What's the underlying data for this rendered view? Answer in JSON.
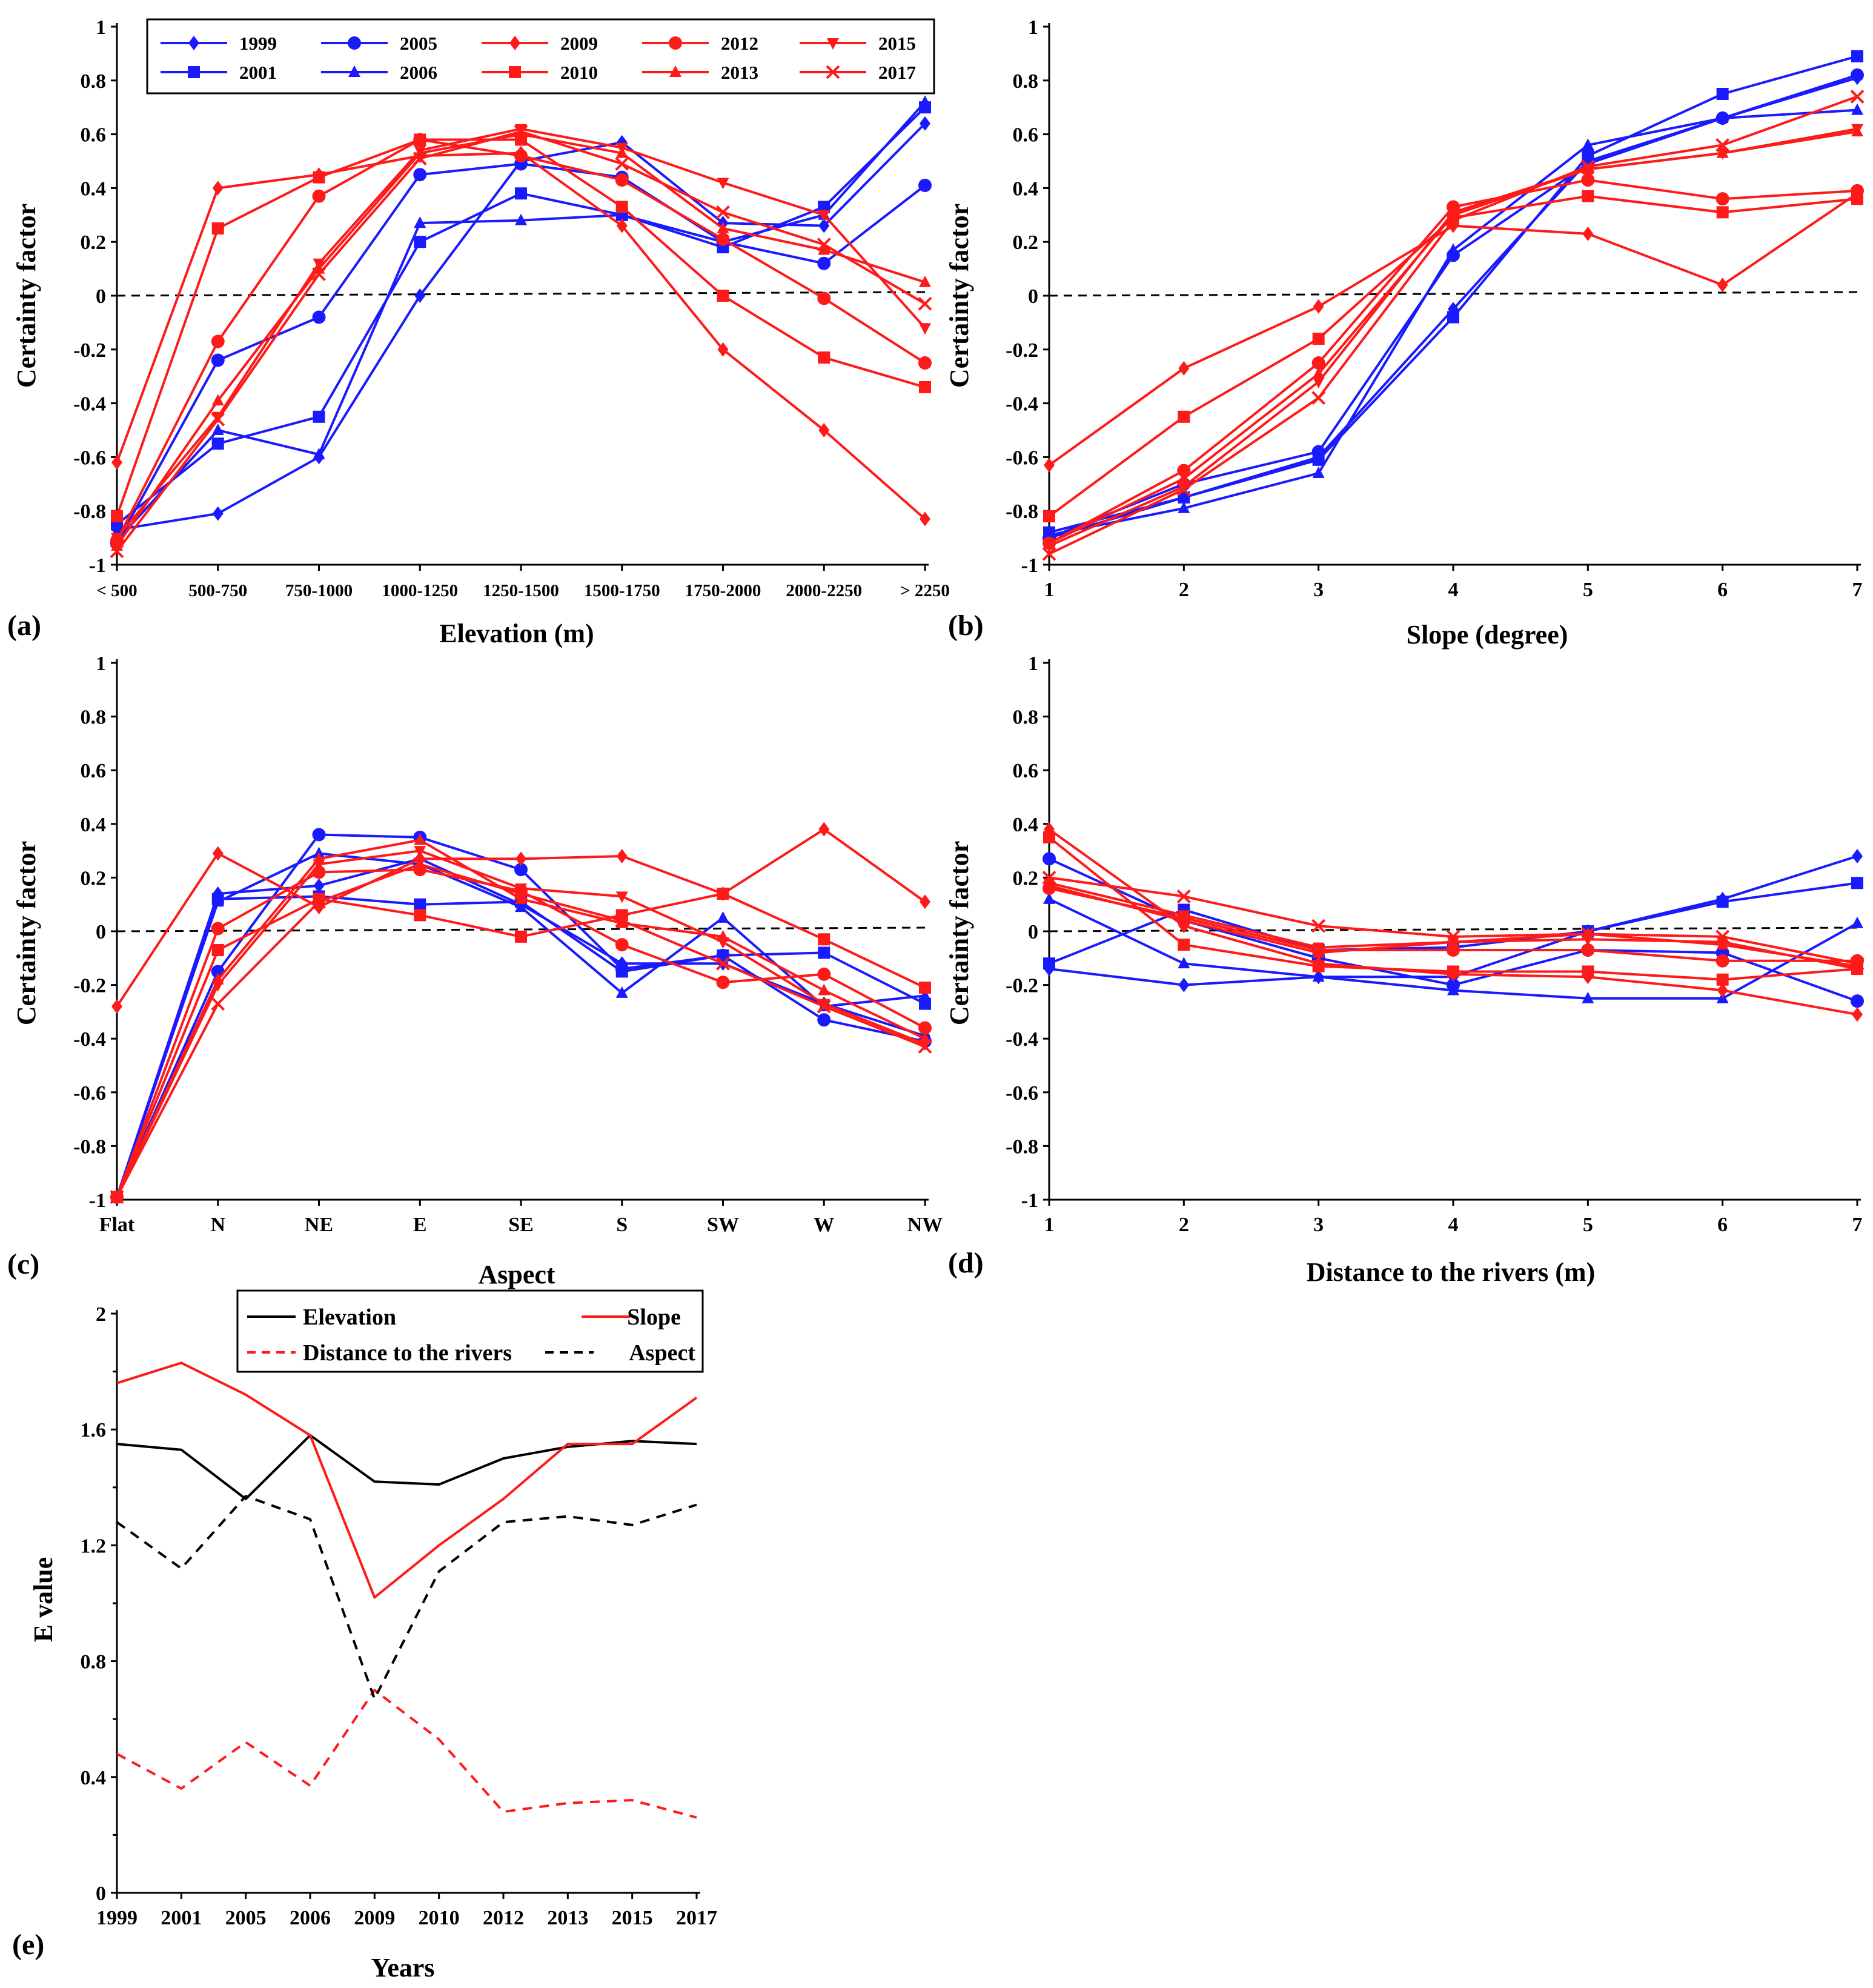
{
  "figure": {
    "panel_labels": [
      "(a)",
      "(b)",
      "(c)",
      "(d)",
      "(e)"
    ]
  },
  "legend_ab": [
    {
      "name": "1999",
      "color": "#1a1aff",
      "marker": "diamond"
    },
    {
      "name": "2005",
      "color": "#1a1aff",
      "marker": "circle"
    },
    {
      "name": "2009",
      "color": "#ff1a1a",
      "marker": "diamond"
    },
    {
      "name": "2012",
      "color": "#ff1a1a",
      "marker": "circle"
    },
    {
      "name": "2015",
      "color": "#ff1a1a",
      "marker": "triangle-down"
    },
    {
      "name": "2001",
      "color": "#1a1aff",
      "marker": "square"
    },
    {
      "name": "2006",
      "color": "#1a1aff",
      "marker": "triangle-up"
    },
    {
      "name": "2010",
      "color": "#ff1a1a",
      "marker": "square"
    },
    {
      "name": "2013",
      "color": "#ff1a1a",
      "marker": "triangle-up"
    },
    {
      "name": "2017",
      "color": "#ff1a1a",
      "marker": "x"
    }
  ],
  "chart_data": [
    {
      "id": "a",
      "type": "line",
      "label": "(a)",
      "xlabel": "Elevation (m)",
      "ylabel": "Certainty factor",
      "ylim": [
        -1,
        1
      ],
      "yticks": [
        "1",
        "0.8",
        "0.6",
        "0.4",
        "0.2",
        "0",
        "-0.2",
        "-0.4",
        "-0.6",
        "-0.8",
        "-1"
      ],
      "categories": [
        "< 500",
        "500-750",
        "750-1000",
        "1000-1250",
        "1250-1500",
        "1500-1750",
        "1750-2000",
        "2000-2250",
        "> 2250"
      ],
      "series": [
        {
          "name": "1999",
          "values": [
            -0.87,
            -0.81,
            -0.6,
            0.0,
            0.5,
            0.57,
            0.27,
            0.26,
            0.64
          ]
        },
        {
          "name": "2001",
          "values": [
            -0.85,
            -0.55,
            -0.45,
            0.2,
            0.38,
            0.3,
            0.18,
            0.33,
            0.7
          ]
        },
        {
          "name": "2005",
          "values": [
            -0.92,
            -0.24,
            -0.08,
            0.45,
            0.49,
            0.44,
            0.2,
            0.12,
            0.41
          ]
        },
        {
          "name": "2006",
          "values": [
            -0.91,
            -0.5,
            -0.59,
            0.27,
            0.28,
            0.3,
            0.2,
            0.3,
            0.72
          ]
        },
        {
          "name": "2009",
          "values": [
            -0.62,
            0.4,
            0.45,
            0.52,
            0.53,
            0.26,
            -0.2,
            -0.5,
            -0.83
          ]
        },
        {
          "name": "2010",
          "values": [
            -0.82,
            0.25,
            0.44,
            0.58,
            0.58,
            0.33,
            0.0,
            -0.23,
            -0.34
          ]
        },
        {
          "name": "2012",
          "values": [
            -0.91,
            -0.17,
            0.37,
            0.58,
            0.52,
            0.43,
            0.21,
            -0.01,
            -0.25
          ]
        },
        {
          "name": "2013",
          "values": [
            -0.93,
            -0.39,
            0.1,
            0.53,
            0.6,
            0.53,
            0.25,
            0.17,
            0.05
          ]
        },
        {
          "name": "2015",
          "values": [
            -0.9,
            -0.45,
            0.12,
            0.54,
            0.62,
            0.55,
            0.42,
            0.3,
            -0.12
          ]
        },
        {
          "name": "2017",
          "values": [
            -0.95,
            -0.46,
            0.08,
            0.51,
            0.61,
            0.49,
            0.31,
            0.19,
            -0.03
          ]
        }
      ]
    },
    {
      "id": "b",
      "type": "line",
      "label": "(b)",
      "xlabel": "Slope (degree)",
      "ylabel": "Certainty factor",
      "ylim": [
        -1,
        1
      ],
      "yticks": [
        "1",
        "0.8",
        "0.6",
        "0.4",
        "0.2",
        "0",
        "-0.2",
        "-0.4",
        "-0.6",
        "-0.8",
        "-1"
      ],
      "categories": [
        "1",
        "2",
        "3",
        "4",
        "5",
        "6",
        "7"
      ],
      "series": [
        {
          "name": "1999",
          "values": [
            -0.9,
            -0.75,
            -0.6,
            -0.05,
            0.5,
            0.66,
            0.81
          ]
        },
        {
          "name": "2001",
          "values": [
            -0.88,
            -0.75,
            -0.61,
            -0.08,
            0.52,
            0.75,
            0.89
          ]
        },
        {
          "name": "2005",
          "values": [
            -0.9,
            -0.7,
            -0.58,
            0.15,
            0.49,
            0.66,
            0.82
          ]
        },
        {
          "name": "2006",
          "values": [
            -0.89,
            -0.79,
            -0.66,
            0.17,
            0.56,
            0.66,
            0.69
          ]
        },
        {
          "name": "2009",
          "values": [
            -0.63,
            -0.27,
            -0.04,
            0.26,
            0.23,
            0.04,
            0.38
          ]
        },
        {
          "name": "2010",
          "values": [
            -0.82,
            -0.45,
            -0.16,
            0.29,
            0.37,
            0.31,
            0.36
          ]
        },
        {
          "name": "2012",
          "values": [
            -0.92,
            -0.65,
            -0.25,
            0.33,
            0.43,
            0.36,
            0.39
          ]
        },
        {
          "name": "2013",
          "values": [
            -0.92,
            -0.68,
            -0.29,
            0.3,
            0.47,
            0.53,
            0.61
          ]
        },
        {
          "name": "2015",
          "values": [
            -0.93,
            -0.71,
            -0.32,
            0.31,
            0.47,
            0.53,
            0.62
          ]
        },
        {
          "name": "2017",
          "values": [
            -0.96,
            -0.72,
            -0.38,
            0.28,
            0.48,
            0.56,
            0.74
          ]
        }
      ]
    },
    {
      "id": "c",
      "type": "line",
      "label": "(c)",
      "xlabel": "Aspect",
      "ylabel": "Certainty factor",
      "ylim": [
        -1,
        1
      ],
      "yticks": [
        "1",
        "0.8",
        "0.6",
        "0.4",
        "0.2",
        "0",
        "-0.2",
        "-0.4",
        "-0.6",
        "-0.8",
        "-1"
      ],
      "categories": [
        "Flat",
        "N",
        "NE",
        "E",
        "SE",
        "S",
        "SW",
        "W",
        "NW"
      ],
      "series": [
        {
          "name": "1999",
          "values": [
            -0.99,
            0.14,
            0.17,
            0.27,
            0.1,
            -0.12,
            -0.12,
            -0.27,
            -0.39
          ]
        },
        {
          "name": "2001",
          "values": [
            -0.99,
            0.12,
            0.13,
            0.1,
            0.11,
            -0.15,
            -0.09,
            -0.08,
            -0.27
          ]
        },
        {
          "name": "2005",
          "values": [
            -0.99,
            -0.15,
            0.36,
            0.35,
            0.23,
            -0.14,
            -0.09,
            -0.33,
            -0.41
          ]
        },
        {
          "name": "2006",
          "values": [
            -0.99,
            0.11,
            0.29,
            0.25,
            0.09,
            -0.23,
            0.05,
            -0.28,
            -0.24
          ]
        },
        {
          "name": "2009",
          "values": [
            -0.28,
            0.29,
            0.09,
            0.27,
            0.27,
            0.28,
            0.14,
            0.38,
            0.11
          ]
        },
        {
          "name": "2010",
          "values": [
            -0.99,
            -0.07,
            0.12,
            0.06,
            -0.02,
            0.06,
            0.14,
            -0.03,
            -0.21
          ]
        },
        {
          "name": "2012",
          "values": [
            -0.99,
            0.01,
            0.22,
            0.23,
            0.15,
            -0.05,
            -0.19,
            -0.16,
            -0.36
          ]
        },
        {
          "name": "2013",
          "values": [
            -0.99,
            -0.18,
            0.27,
            0.34,
            0.12,
            0.03,
            -0.02,
            -0.22,
            -0.4
          ]
        },
        {
          "name": "2015",
          "values": [
            -0.99,
            -0.2,
            0.25,
            0.3,
            0.16,
            0.13,
            -0.04,
            -0.27,
            -0.42
          ]
        },
        {
          "name": "2017",
          "values": [
            -0.99,
            -0.27,
            0.11,
            0.25,
            0.14,
            0.04,
            -0.12,
            -0.28,
            -0.43
          ]
        }
      ]
    },
    {
      "id": "d",
      "type": "line",
      "label": "(d)",
      "xlabel": "Distance to the rivers (m)",
      "ylabel": "Certainty factor",
      "ylim": [
        -1,
        1
      ],
      "yticks": [
        "1",
        "0.8",
        "0.6",
        "0.4",
        "0.2",
        "0",
        "-0.2",
        "-0.4",
        "-0.6",
        "-0.8",
        "-1"
      ],
      "categories": [
        "1",
        "2",
        "3",
        "4",
        "5",
        "6",
        "7"
      ],
      "series": [
        {
          "name": "1999",
          "values": [
            -0.14,
            -0.2,
            -0.17,
            -0.17,
            0.0,
            0.12,
            0.28
          ]
        },
        {
          "name": "2001",
          "values": [
            -0.12,
            0.08,
            -0.07,
            -0.06,
            0.0,
            0.11,
            0.18
          ]
        },
        {
          "name": "2005",
          "values": [
            0.27,
            0.04,
            -0.1,
            -0.2,
            -0.07,
            -0.08,
            -0.26
          ]
        },
        {
          "name": "2006",
          "values": [
            0.12,
            -0.12,
            -0.17,
            -0.22,
            -0.25,
            -0.25,
            0.03
          ]
        },
        {
          "name": "2009",
          "values": [
            0.38,
            0.02,
            -0.12,
            -0.16,
            -0.17,
            -0.22,
            -0.31
          ]
        },
        {
          "name": "2010",
          "values": [
            0.35,
            -0.05,
            -0.13,
            -0.15,
            -0.15,
            -0.18,
            -0.14
          ]
        },
        {
          "name": "2012",
          "values": [
            0.16,
            0.05,
            -0.07,
            -0.07,
            -0.07,
            -0.11,
            -0.11
          ]
        },
        {
          "name": "2013",
          "values": [
            0.17,
            0.04,
            -0.08,
            -0.04,
            -0.01,
            -0.05,
            -0.13
          ]
        },
        {
          "name": "2015",
          "values": [
            0.18,
            0.06,
            -0.06,
            -0.04,
            -0.03,
            -0.04,
            -0.14
          ]
        },
        {
          "name": "2017",
          "values": [
            0.2,
            0.13,
            0.02,
            -0.02,
            -0.01,
            -0.02,
            -0.12
          ]
        }
      ]
    },
    {
      "id": "e",
      "type": "line",
      "label": "(e)",
      "xlabel": "Years",
      "ylabel": "E value",
      "ylim": [
        0,
        2
      ],
      "yticks": [
        "2",
        "1.6",
        "1.2",
        "0.8",
        "0.4",
        "0"
      ],
      "categories": [
        "1999",
        "2001",
        "2005",
        "2006",
        "2009",
        "2010",
        "2012",
        "2013",
        "2015",
        "2017"
      ],
      "series": [
        {
          "name": "Elevation",
          "color": "#000000",
          "dash": "solid",
          "values": [
            1.55,
            1.53,
            1.36,
            1.58,
            1.42,
            1.41,
            1.5,
            1.54,
            1.56,
            1.55
          ]
        },
        {
          "name": "Slope",
          "color": "#ff1a1a",
          "dash": "solid",
          "values": [
            1.76,
            1.83,
            1.72,
            1.58,
            1.02,
            1.2,
            1.36,
            1.55,
            1.55,
            1.71
          ]
        },
        {
          "name": "Distance to the rivers",
          "color": "#ff1a1a",
          "dash": "dashed",
          "values": [
            0.48,
            0.36,
            0.52,
            0.37,
            0.7,
            0.53,
            0.28,
            0.31,
            0.32,
            0.26
          ]
        },
        {
          "name": "Aspect",
          "color": "#000000",
          "dash": "dashed",
          "values": [
            1.28,
            1.12,
            1.37,
            1.29,
            0.67,
            1.11,
            1.28,
            1.3,
            1.27,
            1.34
          ]
        }
      ]
    }
  ]
}
